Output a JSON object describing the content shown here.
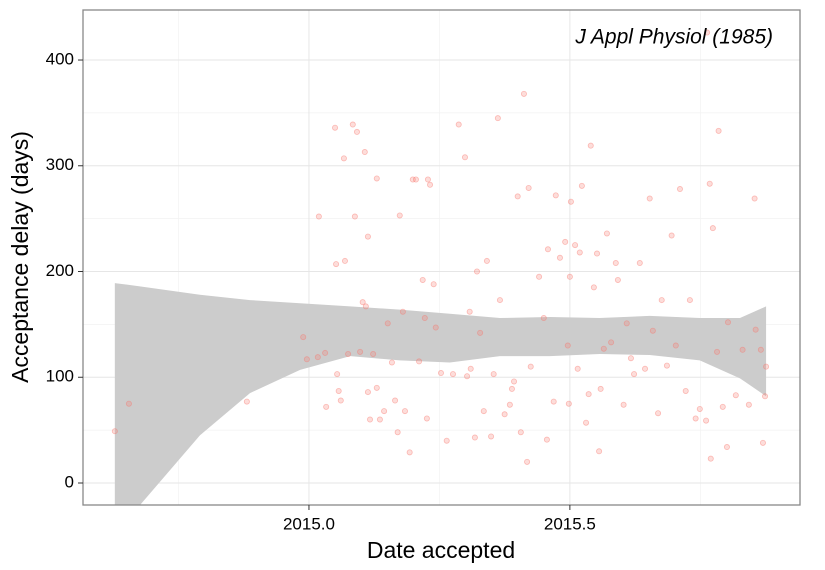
{
  "chart_data": {
    "type": "scatter",
    "annotation": "J Appl Physiol (1985)",
    "x_label": "Date accepted",
    "y_label": "Acceptance delay (days)",
    "color": "#f8766d",
    "ribbon_color": "#cccccc",
    "grid": true,
    "xlim": [
      2014.567,
      2015.941
    ],
    "ylim": [
      -20.8,
      447.3
    ],
    "xticks": [
      {
        "value": 2015.0,
        "label": "2015.0"
      },
      {
        "value": 2015.5,
        "label": "2015.5"
      }
    ],
    "yticks": [
      0,
      100,
      200,
      300,
      400
    ],
    "xminor": [
      2014.75,
      2015.25,
      2015.75
    ],
    "yminor": [
      50,
      150,
      250,
      350
    ],
    "ribbon": {
      "x": [
        2014.628,
        2014.676,
        2014.791,
        2014.887,
        2014.983,
        2015.079,
        2015.174,
        2015.27,
        2015.366,
        2015.462,
        2015.557,
        2015.653,
        2015.749,
        2015.826,
        2015.876
      ],
      "lower": [
        -60,
        -21,
        45,
        85,
        107,
        120,
        116,
        114,
        120,
        120,
        122,
        121,
        116,
        99,
        82
      ],
      "upper": [
        189,
        186,
        178,
        173,
        170,
        167,
        164,
        160,
        156,
        157,
        156,
        158,
        156,
        156,
        167
      ]
    },
    "x": [
      2014.628,
      2014.655,
      2014.881,
      2014.989,
      2014.996,
      2015.017,
      2015.019,
      2015.031,
      2015.033,
      2015.05,
      2015.052,
      2015.054,
      2015.057,
      2015.061,
      2015.067,
      2015.069,
      2015.075,
      2015.084,
      2015.088,
      2015.092,
      2015.098,
      2015.103,
      2015.107,
      2015.109,
      2015.113,
      2015.113,
      2015.117,
      2015.123,
      2015.13,
      2015.13,
      2015.136,
      2015.144,
      2015.151,
      2015.159,
      2015.165,
      2015.17,
      2015.174,
      2015.18,
      2015.184,
      2015.193,
      2015.199,
      2015.205,
      2015.211,
      2015.218,
      2015.222,
      2015.226,
      2015.228,
      2015.232,
      2015.239,
      2015.243,
      2015.253,
      2015.264,
      2015.276,
      2015.287,
      2015.299,
      2015.303,
      2015.308,
      2015.31,
      2015.318,
      2015.322,
      2015.328,
      2015.335,
      2015.341,
      2015.349,
      2015.354,
      2015.362,
      2015.366,
      2015.375,
      2015.385,
      2015.389,
      2015.393,
      2015.4,
      2015.406,
      2015.412,
      2015.418,
      2015.421,
      2015.425,
      2015.441,
      2015.45,
      2015.456,
      2015.458,
      2015.469,
      2015.473,
      2015.481,
      2015.491,
      2015.496,
      2015.498,
      2015.5,
      2015.502,
      2015.51,
      2015.515,
      2015.519,
      2015.523,
      2015.531,
      2015.536,
      2015.54,
      2015.546,
      2015.552,
      2015.556,
      2015.559,
      2015.565,
      2015.571,
      2015.579,
      2015.588,
      2015.592,
      2015.603,
      2015.609,
      2015.617,
      2015.623,
      2015.634,
      2015.644,
      2015.653,
      2015.659,
      2015.669,
      2015.676,
      2015.686,
      2015.695,
      2015.703,
      2015.711,
      2015.722,
      2015.73,
      2015.741,
      2015.749,
      2015.761,
      2015.763,
      2015.768,
      2015.77,
      2015.774,
      2015.782,
      2015.785,
      2015.793,
      2015.801,
      2015.803,
      2015.818,
      2015.831,
      2015.843,
      2015.854,
      2015.856,
      2015.866,
      2015.87,
      2015.874,
      2015.876
    ],
    "values": [
      49,
      75,
      77,
      138,
      117,
      119,
      252,
      123,
      72,
      336,
      207,
      103,
      87,
      78,
      307,
      210,
      122,
      339,
      252,
      332,
      124,
      171,
      313,
      167,
      233,
      86,
      60,
      122,
      288,
      90,
      60,
      68,
      151,
      114,
      78,
      48,
      253,
      162,
      68,
      29,
      287,
      287,
      115,
      192,
      156,
      61,
      287,
      282,
      188,
      147,
      104,
      40,
      103,
      339,
      308,
      101,
      162,
      108,
      43,
      200,
      142,
      68,
      210,
      44,
      103,
      345,
      173,
      65,
      74,
      89,
      96,
      271,
      48,
      368,
      20,
      279,
      110,
      195,
      156,
      41,
      221,
      77,
      272,
      213,
      228,
      130,
      75,
      195,
      266,
      225,
      108,
      218,
      281,
      57,
      84,
      319,
      185,
      217,
      30,
      89,
      127,
      236,
      133,
      208,
      192,
      74,
      151,
      118,
      103,
      208,
      108,
      269,
      144,
      66,
      173,
      111,
      234,
      130,
      278,
      87,
      173,
      61,
      70,
      59,
      426,
      283,
      23,
      241,
      124,
      333,
      72,
      34,
      152,
      83,
      126,
      74,
      269,
      145,
      126,
      38,
      82,
      110
    ]
  }
}
